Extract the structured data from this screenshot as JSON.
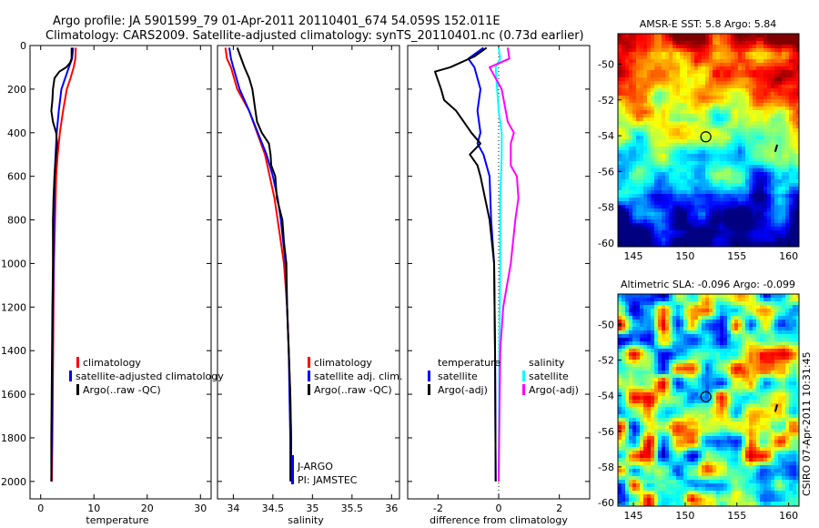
{
  "title": {
    "line1": "Argo profile: JA 5901599_79 01-Apr-2011 20110401_674 54.059S 152.011E",
    "line2": "Climatology: CARS2009. Satellite-adjusted climatology: synTS_20110401.nc (0.73d earlier)"
  },
  "side_text": "CSIRO 07-Apr-2011 10:31:45",
  "colors": {
    "clim": "#ff0000",
    "sat": "#0000ff",
    "argo": "#000000",
    "sat_sal": "#00ffff",
    "argo_sal": "#ff00ff"
  },
  "chart_data": [
    {
      "type": "line",
      "id": "temperature",
      "xlabel": "temperature",
      "ylabel": "",
      "xlim": [
        -2,
        32
      ],
      "ylim": [
        2080,
        0
      ],
      "xticks": [
        0,
        10,
        20,
        30
      ],
      "yticks": [
        0,
        200,
        400,
        600,
        800,
        1000,
        1200,
        1400,
        1600,
        1800,
        2000
      ],
      "series": [
        {
          "name": "climatology",
          "color": "#ff0000",
          "points": [
            [
              6.6,
              10
            ],
            [
              6.5,
              60
            ],
            [
              6.2,
              100
            ],
            [
              5.6,
              150
            ],
            [
              4.9,
              200
            ],
            [
              4.2,
              300
            ],
            [
              3.6,
              400
            ],
            [
              3.2,
              500
            ],
            [
              2.9,
              600
            ],
            [
              2.7,
              800
            ],
            [
              2.5,
              1000
            ],
            [
              2.4,
              1200
            ],
            [
              2.3,
              1500
            ],
            [
              2.2,
              1800
            ],
            [
              2.1,
              2000
            ]
          ]
        },
        {
          "name": "satellite-adjusted climatology",
          "color": "#0000ff",
          "points": [
            [
              6.1,
              10
            ],
            [
              5.9,
              60
            ],
            [
              5.3,
              100
            ],
            [
              4.6,
              150
            ],
            [
              3.9,
              200
            ],
            [
              3.4,
              300
            ],
            [
              3.0,
              400
            ],
            [
              2.8,
              500
            ],
            [
              2.6,
              600
            ],
            [
              2.5,
              800
            ],
            [
              2.4,
              1000
            ],
            [
              2.3,
              1200
            ],
            [
              2.2,
              1500
            ],
            [
              2.1,
              1800
            ],
            [
              2.0,
              2000
            ]
          ]
        },
        {
          "name": "Argo(..raw -QC)",
          "color": "#000000",
          "points": [
            [
              5.8,
              10
            ],
            [
              5.8,
              60
            ],
            [
              5.5,
              80
            ],
            [
              4.8,
              100
            ],
            [
              3.5,
              120
            ],
            [
              2.6,
              150
            ],
            [
              2.3,
              200
            ],
            [
              2.2,
              250
            ],
            [
              2.0,
              300
            ],
            [
              2.3,
              350
            ],
            [
              2.9,
              400
            ],
            [
              3.1,
              450
            ],
            [
              2.9,
              500
            ],
            [
              2.6,
              600
            ],
            [
              2.4,
              700
            ],
            [
              2.3,
              800
            ],
            [
              2.3,
              1000
            ],
            [
              2.2,
              1200
            ],
            [
              2.1,
              1500
            ],
            [
              2.0,
              1800
            ],
            [
              2.0,
              2000
            ]
          ]
        }
      ],
      "legend": {
        "position": "center-left",
        "entries": [
          "climatology",
          "satellite-adjusted climatology",
          "Argo(..raw -QC)"
        ]
      }
    },
    {
      "type": "line",
      "id": "salinity",
      "xlabel": "salinity",
      "ylim": [
        2080,
        0
      ],
      "xlim": [
        33.8,
        36.1
      ],
      "xticks": [
        34,
        34.5,
        35,
        35.5,
        36
      ],
      "xtick_labels": [
        "34",
        "34.5",
        "35",
        "35.5",
        "36"
      ],
      "series": [
        {
          "name": "climatology",
          "color": "#ff0000",
          "points": [
            [
              33.9,
              10
            ],
            [
              33.92,
              60
            ],
            [
              33.97,
              100
            ],
            [
              34.05,
              200
            ],
            [
              34.2,
              300
            ],
            [
              34.3,
              400
            ],
            [
              34.4,
              500
            ],
            [
              34.46,
              600
            ],
            [
              34.52,
              700
            ],
            [
              34.56,
              800
            ],
            [
              34.6,
              900
            ],
            [
              34.64,
              1000
            ],
            [
              34.66,
              1100
            ],
            [
              34.68,
              1200
            ],
            [
              34.7,
              1400
            ],
            [
              34.72,
              1600
            ],
            [
              34.73,
              1800
            ],
            [
              34.73,
              2000
            ]
          ]
        },
        {
          "name": "satellite adj. clim.",
          "color": "#0000ff",
          "points": [
            [
              33.95,
              10
            ],
            [
              33.97,
              60
            ],
            [
              34.0,
              100
            ],
            [
              34.08,
              200
            ],
            [
              34.2,
              300
            ],
            [
              34.31,
              400
            ],
            [
              34.42,
              500
            ],
            [
              34.5,
              600
            ],
            [
              34.56,
              700
            ],
            [
              34.6,
              800
            ],
            [
              34.63,
              900
            ],
            [
              34.66,
              1000
            ],
            [
              34.68,
              1200
            ],
            [
              34.7,
              1400
            ],
            [
              34.71,
              1600
            ],
            [
              34.72,
              1800
            ],
            [
              34.72,
              2000
            ]
          ]
        },
        {
          "name": "Argo(..raw -QC)",
          "color": "#000000",
          "points": [
            [
              34.05,
              10
            ],
            [
              34.1,
              60
            ],
            [
              34.14,
              100
            ],
            [
              34.2,
              150
            ],
            [
              34.24,
              200
            ],
            [
              34.28,
              300
            ],
            [
              34.3,
              350
            ],
            [
              34.36,
              400
            ],
            [
              34.45,
              450
            ],
            [
              34.47,
              500
            ],
            [
              34.48,
              550
            ],
            [
              34.53,
              600
            ],
            [
              34.55,
              700
            ],
            [
              34.62,
              800
            ],
            [
              34.64,
              900
            ],
            [
              34.67,
              1000
            ],
            [
              34.68,
              1200
            ],
            [
              34.7,
              1400
            ],
            [
              34.72,
              1600
            ],
            [
              34.73,
              1800
            ],
            [
              34.73,
              2000
            ]
          ]
        }
      ],
      "legend": {
        "position": "center-right",
        "entries": [
          "climatology",
          "satellite adj. clim.",
          "Argo(..raw -QC)"
        ]
      },
      "annotations": [
        "J-ARGO",
        "PI: JAMSTEC"
      ]
    },
    {
      "type": "line",
      "id": "difference",
      "xlabel": "difference from climatology",
      "ylim": [
        2080,
        0
      ],
      "xlim": [
        -3,
        3
      ],
      "xticks": [
        -2,
        0,
        2
      ],
      "series": [
        {
          "name": "temperature satellite",
          "color": "#0000ff",
          "points": [
            [
              -0.5,
              10
            ],
            [
              -1.0,
              60
            ],
            [
              -0.8,
              100
            ],
            [
              -0.6,
              200
            ],
            [
              -0.7,
              300
            ],
            [
              -0.6,
              400
            ],
            [
              -0.7,
              450
            ],
            [
              -0.5,
              500
            ],
            [
              -0.3,
              600
            ],
            [
              -0.25,
              800
            ],
            [
              -0.15,
              1000
            ],
            [
              -0.12,
              1400
            ],
            [
              -0.1,
              2000
            ]
          ]
        },
        {
          "name": "temperature Argo(-adj)",
          "color": "#000000",
          "points": [
            [
              -0.4,
              10
            ],
            [
              -0.8,
              50
            ],
            [
              -1.6,
              100
            ],
            [
              -2.1,
              120
            ],
            [
              -1.9,
              200
            ],
            [
              -1.8,
              250
            ],
            [
              -1.4,
              300
            ],
            [
              -0.9,
              400
            ],
            [
              -0.6,
              450
            ],
            [
              -0.95,
              500
            ],
            [
              -0.7,
              550
            ],
            [
              -0.6,
              600
            ],
            [
              -0.3,
              800
            ],
            [
              -0.15,
              1000
            ],
            [
              -0.12,
              1400
            ],
            [
              -0.1,
              2000
            ]
          ]
        },
        {
          "name": "salinity satellite",
          "color": "#00ffff",
          "points": [
            [
              0.0,
              10
            ],
            [
              0.05,
              60
            ],
            [
              -0.1,
              100
            ],
            [
              -0.05,
              200
            ],
            [
              0.0,
              300
            ],
            [
              0.1,
              400
            ],
            [
              0.1,
              500
            ],
            [
              0.05,
              700
            ],
            [
              0.05,
              1000
            ],
            [
              0.02,
              1400
            ],
            [
              0.0,
              2000
            ]
          ]
        },
        {
          "name": "salinity Argo(-adj)",
          "color": "#ff00ff",
          "points": [
            [
              0.3,
              10
            ],
            [
              0.35,
              60
            ],
            [
              -0.3,
              100
            ],
            [
              0.1,
              200
            ],
            [
              0.3,
              350
            ],
            [
              0.5,
              400
            ],
            [
              0.4,
              450
            ],
            [
              0.4,
              550
            ],
            [
              0.6,
              600
            ],
            [
              0.65,
              700
            ],
            [
              0.55,
              800
            ],
            [
              0.4,
              1000
            ],
            [
              0.15,
              1200
            ],
            [
              0.05,
              1400
            ],
            [
              0.0,
              2000
            ]
          ]
        }
      ],
      "legend": {
        "position": "center",
        "temperature_header": "temperature",
        "salinity_header": "salinity",
        "entries": [
          "satellite",
          "Argo(-adj)",
          "satellite",
          "Argo(-adj)"
        ]
      }
    },
    {
      "type": "heatmap",
      "id": "sst",
      "title": "AMSR-E SST: 5.8 Argo: 5.84",
      "xlim": [
        143.5,
        161
      ],
      "ylim": [
        -60.2,
        -48.3
      ],
      "xticks": [
        145,
        150,
        155,
        160
      ],
      "yticks": [
        -50,
        -52,
        -54,
        -56,
        -58,
        -60
      ],
      "marker": {
        "lon": 152.0,
        "lat": -54.06
      }
    },
    {
      "type": "heatmap",
      "id": "sla",
      "title": "Altimetric SLA: -0.096 Argo: -0.099",
      "xlim": [
        143.5,
        161
      ],
      "ylim": [
        -60.2,
        -48.3
      ],
      "xticks": [
        145,
        150,
        155,
        160
      ],
      "yticks": [
        -50,
        -52,
        -54,
        -56,
        -58,
        -60
      ],
      "marker": {
        "lon": 152.0,
        "lat": -54.06
      }
    }
  ]
}
